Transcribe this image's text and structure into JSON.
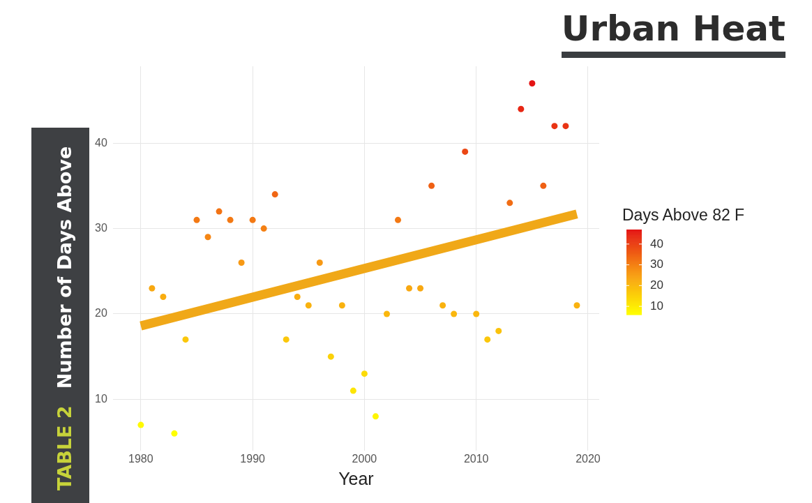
{
  "chart_data": {
    "type": "scatter",
    "title": "Urban Heat",
    "xlabel": "Year",
    "ylabel": "Number of Days Above",
    "clabel": "Days Above 82 F",
    "annotations": [
      "TABLE 2"
    ],
    "x": [
      1980,
      1981,
      1982,
      1983,
      1984,
      1985,
      1986,
      1987,
      1988,
      1989,
      1990,
      1991,
      1992,
      1993,
      1994,
      1995,
      1996,
      1997,
      1998,
      1999,
      2000,
      2001,
      2002,
      2003,
      2004,
      2005,
      2006,
      2007,
      2008,
      2009,
      2010,
      2011,
      2012,
      2013,
      2014,
      2015,
      2016,
      2017,
      2018,
      2019
    ],
    "series": [
      {
        "colors": [
          "#fffa01",
          "#f8a811",
          "#f9ad10",
          "#ffff00",
          "#fbc70b",
          "#f37914",
          "#f58614",
          "#f27314",
          "#f37914",
          "#f79914",
          "#f37914",
          "#f48014",
          "#f06614",
          "#fbc70b",
          "#f9ad10",
          "#f9b20f",
          "#f79914",
          "#fbd109",
          "#f9b20f",
          "#fde505",
          "#fcdb07",
          "#fef502",
          "#fab70e",
          "#f37914",
          "#f8a811",
          "#f8a811",
          "#ef6014",
          "#f9b20f",
          "#fab70e",
          "#eb4714",
          "#fab70e",
          "#fbc70b",
          "#fac20c",
          "#f16d14",
          "#e72714",
          "#e41414",
          "#ef6014",
          "#e93414",
          "#e93414",
          "#f9b20f"
        ],
        "values": [
          7,
          23,
          22,
          6,
          17,
          31,
          29,
          32,
          31,
          26,
          31,
          30,
          34,
          17,
          22,
          21,
          26,
          15,
          21,
          11,
          13,
          8,
          20,
          31,
          23,
          23,
          35,
          21,
          20,
          39,
          20,
          17,
          18,
          33,
          44,
          47,
          35,
          42,
          42,
          21
        ]
      },
      {
        "type": "line",
        "x": [
          1980,
          2019
        ],
        "values": [
          18.6,
          31.7
        ],
        "color": "#f0a818",
        "marker": "none"
      }
    ],
    "xlim": [
      1977.5,
      2021
    ],
    "xticks": [
      1980,
      1990,
      2000,
      2010,
      2020
    ],
    "ylim": [
      4,
      49
    ],
    "yticks": [
      10,
      20,
      30,
      40
    ],
    "clim": [
      6,
      47
    ],
    "cticks": [
      10,
      20,
      30,
      40
    ],
    "grid": true,
    "legend": false,
    "marker": "circle"
  }
}
